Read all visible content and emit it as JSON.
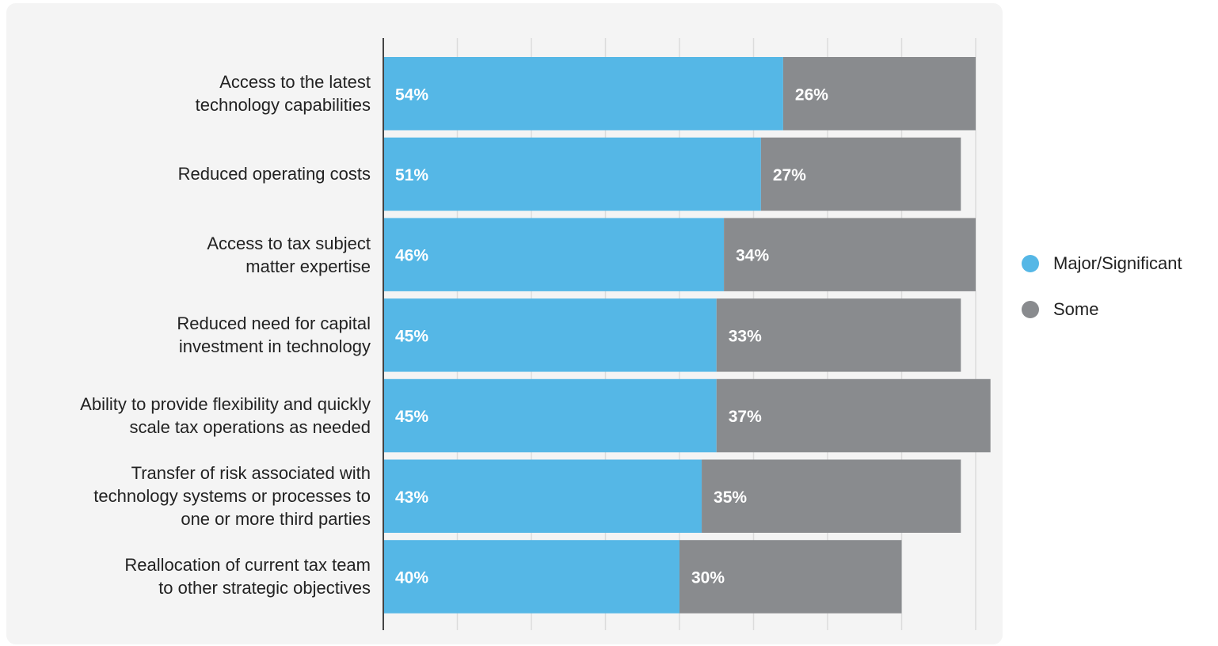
{
  "chart_data": {
    "type": "bar",
    "orientation": "horizontal",
    "stacked": true,
    "categories": [
      [
        "Access to the latest",
        "technology capabilities"
      ],
      [
        "Reduced operating costs"
      ],
      [
        "Access to tax subject",
        "matter expertise"
      ],
      [
        "Reduced need for capital",
        "investment in technology"
      ],
      [
        "Ability to provide flexibility and quickly",
        "scale tax operations as needed"
      ],
      [
        "Transfer of risk associated with",
        "technology systems or processes to",
        "one or more third parties"
      ],
      [
        "Reallocation of current tax team",
        "to other strategic objectives"
      ]
    ],
    "series": [
      {
        "name": "Major/Significant",
        "color": "#55b7e6",
        "values": [
          54,
          51,
          46,
          45,
          45,
          43,
          40
        ],
        "labels": [
          "54%",
          "51%",
          "46%",
          "45%",
          "45%",
          "43%",
          "40%"
        ]
      },
      {
        "name": "Some",
        "color": "#898b8e",
        "values": [
          26,
          27,
          34,
          33,
          37,
          35,
          30
        ],
        "labels": [
          "26%",
          "27%",
          "34%",
          "33%",
          "37%",
          "35%",
          "30%"
        ]
      }
    ],
    "xlim": [
      0,
      80
    ],
    "grid": true,
    "legend_position": "right"
  }
}
